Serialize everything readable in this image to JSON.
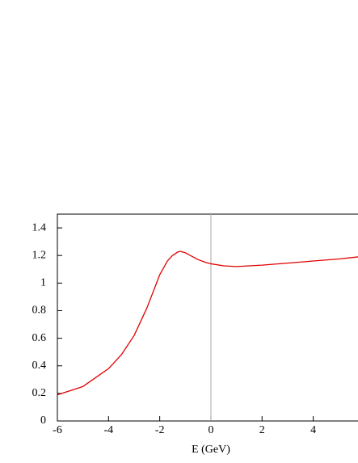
{
  "chart_data": {
    "type": "line",
    "x_label": "E (GeV)",
    "x": [
      -6,
      -5,
      -4,
      -3.5,
      -3,
      -2.5,
      -2,
      -1.7,
      -1.5,
      -1.3,
      -1.2,
      -1,
      -0.7,
      -0.5,
      -0.2,
      0,
      0.5,
      1,
      2,
      3,
      4,
      5,
      5.75
    ],
    "series": [
      {
        "color": "#e00000",
        "values": [
          0.19,
          0.25,
          0.38,
          0.48,
          0.62,
          0.82,
          1.06,
          1.16,
          1.2,
          1.225,
          1.23,
          1.22,
          1.19,
          1.17,
          1.15,
          1.14,
          1.125,
          1.12,
          1.13,
          1.145,
          1.16,
          1.175,
          1.19
        ]
      }
    ],
    "xlim": [
      -6,
      5.75
    ],
    "xticks": [
      -6,
      -4,
      -2,
      0,
      2,
      4
    ],
    "ylim": [
      0,
      1.5
    ],
    "yticks": [
      0,
      0.2,
      0.4,
      0.6,
      0.8,
      1,
      1.2,
      1.4
    ],
    "zero_line_color": "#aaaaaa"
  }
}
